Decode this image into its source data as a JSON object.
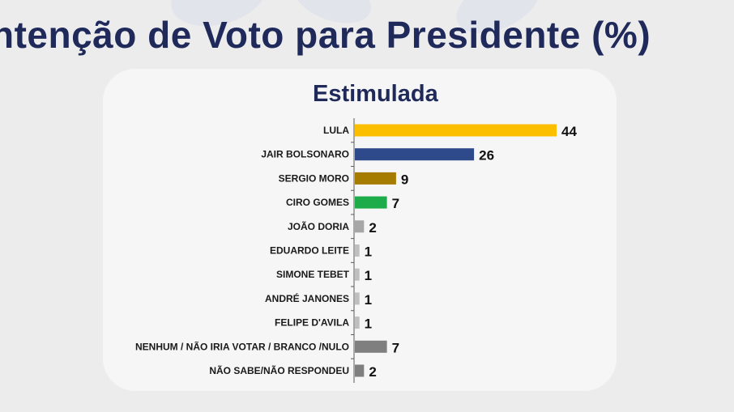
{
  "header": {
    "title": "ntenção de Voto para Presidente (%)"
  },
  "chart_data": {
    "type": "bar",
    "orientation": "horizontal",
    "title": "Estimulada",
    "xlabel": "",
    "ylabel": "",
    "xlim": [
      0,
      44
    ],
    "grid": false,
    "legend": "none",
    "categories": [
      "LULA",
      "JAIR BOLSONARO",
      "SERGIO MORO",
      "CIRO GOMES",
      "JOÃO DORIA",
      "EDUARDO LEITE",
      "SIMONE TEBET",
      "ANDRÉ JANONES",
      "FELIPE D'AVILA",
      "NENHUM / NÃO IRIA VOTAR / BRANCO /NULO",
      "NÃO SABE/NÃO RESPONDEU"
    ],
    "values": [
      44,
      26,
      9,
      7,
      2,
      1,
      1,
      1,
      1,
      7,
      2
    ],
    "colors": [
      "#fcbf00",
      "#2f4a8a",
      "#a67c00",
      "#1eac4a",
      "#a6a6a6",
      "#bfbfbf",
      "#bfbfbf",
      "#bfbfbf",
      "#bfbfbf",
      "#7f7f7f",
      "#7f7f7f"
    ]
  }
}
